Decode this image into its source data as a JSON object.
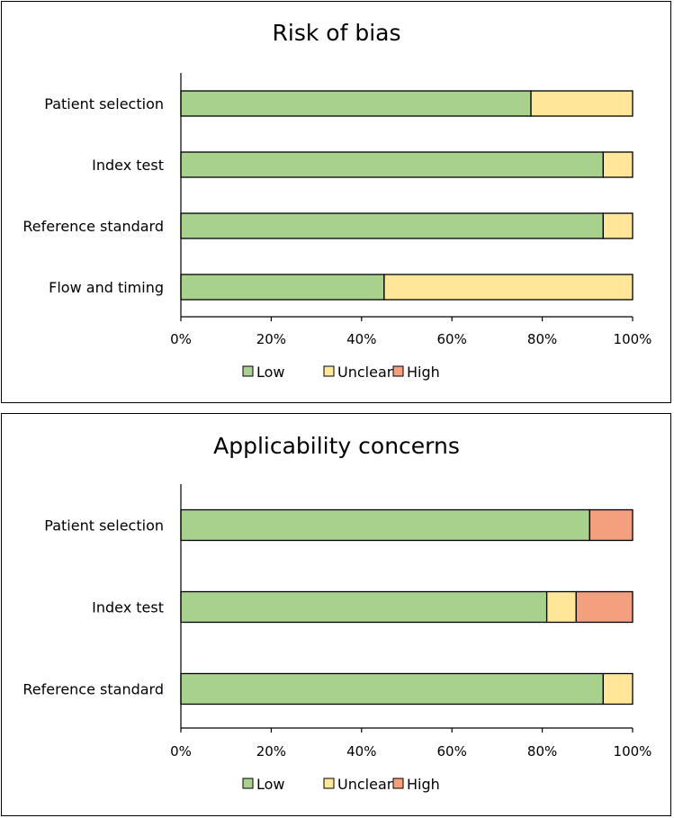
{
  "colors": {
    "Low": "#a9d18e",
    "Unclear": "#ffe699",
    "High": "#f4a07e"
  },
  "chart_data": [
    {
      "type": "bar",
      "orientation": "horizontal",
      "stacked": true,
      "title": "Risk of bias",
      "categories": [
        "Patient selection",
        "Index test",
        "Reference standard",
        "Flow and timing"
      ],
      "series": [
        {
          "name": "Low",
          "values": [
            77.5,
            93.5,
            93.5,
            45
          ]
        },
        {
          "name": "Unclear",
          "values": [
            22.5,
            6.5,
            6.5,
            55
          ]
        },
        {
          "name": "High",
          "values": [
            0,
            0,
            0,
            0
          ]
        }
      ],
      "xlim": [
        0,
        100
      ],
      "ticks": [
        "0%",
        "20%",
        "40%",
        "60%",
        "80%",
        "100%"
      ],
      "legend": "bottom",
      "grid": false
    },
    {
      "type": "bar",
      "orientation": "horizontal",
      "stacked": true,
      "title": "Applicability concerns",
      "categories": [
        "Patient selection",
        "Index test",
        "Reference standard"
      ],
      "series": [
        {
          "name": "Low",
          "values": [
            90.5,
            81,
            93.5
          ]
        },
        {
          "name": "Unclear",
          "values": [
            0,
            6.5,
            6.5
          ]
        },
        {
          "name": "High",
          "values": [
            9.5,
            12.5,
            0
          ]
        }
      ],
      "xlim": [
        0,
        100
      ],
      "ticks": [
        "0%",
        "20%",
        "40%",
        "60%",
        "80%",
        "100%"
      ],
      "legend": "bottom",
      "grid": false
    }
  ]
}
